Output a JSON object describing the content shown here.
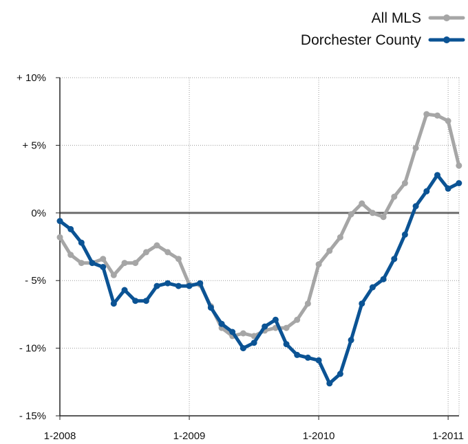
{
  "chart_data": {
    "type": "line",
    "title": "",
    "xlabel": "",
    "ylabel": "",
    "ylim": [
      -15,
      10
    ],
    "xlim": [
      "2008-01",
      "2011-01"
    ],
    "y_ticks": [
      {
        "value": 10,
        "label": "+ 10%"
      },
      {
        "value": 5,
        "label": "+ 5%"
      },
      {
        "value": 0,
        "label": "0%"
      },
      {
        "value": -5,
        "label": "- 5%"
      },
      {
        "value": -10,
        "label": "- 10%"
      },
      {
        "value": -15,
        "label": "- 15%"
      }
    ],
    "x_ticks": [
      {
        "value": "2008-01",
        "label": "1-2008"
      },
      {
        "value": "2009-01",
        "label": "1-2009"
      },
      {
        "value": "2010-01",
        "label": "1-2010"
      },
      {
        "value": "2011-01",
        "label": "1-2011"
      }
    ],
    "grid": true,
    "legend_position": "top-right",
    "x": [
      "2008-01",
      "2008-02",
      "2008-03",
      "2008-04",
      "2008-05",
      "2008-06",
      "2008-07",
      "2008-08",
      "2008-09",
      "2008-10",
      "2008-11",
      "2008-12",
      "2009-01",
      "2009-02",
      "2009-03",
      "2009-04",
      "2009-05",
      "2009-06",
      "2009-07",
      "2009-08",
      "2009-09",
      "2009-10",
      "2009-11",
      "2009-12",
      "2010-01",
      "2010-02",
      "2010-03",
      "2010-04",
      "2010-05",
      "2010-06",
      "2010-07",
      "2010-08",
      "2010-09",
      "2010-10",
      "2010-11",
      "2010-12",
      "2011-01",
      "2011-02"
    ],
    "series": [
      {
        "name": "All MLS",
        "color": "#a6a6a6",
        "values": [
          -1.8,
          -3.1,
          -3.7,
          -3.7,
          -3.4,
          -4.6,
          -3.7,
          -3.7,
          -2.9,
          -2.4,
          -2.9,
          -3.4,
          -5.3,
          -5.3,
          -6.9,
          -8.5,
          -9.1,
          -8.9,
          -9.1,
          -8.7,
          -8.5,
          -8.5,
          -7.9,
          -6.7,
          -3.8,
          -2.8,
          -1.8,
          -0.1,
          0.7,
          0.0,
          -0.3,
          1.2,
          2.2,
          4.8,
          7.3,
          7.2,
          6.8,
          3.5
        ]
      },
      {
        "name": "Dorchester County",
        "color": "#0b5394",
        "values": [
          -0.6,
          -1.2,
          -2.2,
          -3.7,
          -4.0,
          -6.7,
          -5.7,
          -6.5,
          -6.5,
          -5.4,
          -5.2,
          -5.4,
          -5.4,
          -5.2,
          -7.0,
          -8.2,
          -8.8,
          -10.0,
          -9.6,
          -8.4,
          -7.9,
          -9.7,
          -10.5,
          -10.7,
          -10.9,
          -12.6,
          -11.9,
          -9.4,
          -6.7,
          -5.5,
          -4.9,
          -3.4,
          -1.6,
          0.5,
          1.6,
          2.8,
          1.8,
          2.2
        ]
      }
    ]
  }
}
